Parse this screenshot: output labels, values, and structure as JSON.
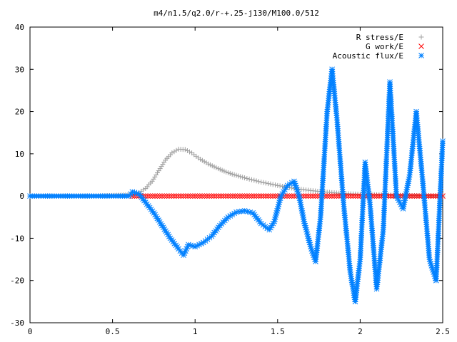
{
  "chart_data": {
    "type": "scatter",
    "title": "m4/n1.5/q2.0/r-+.25-j130/M100.0/512",
    "xlabel": "",
    "ylabel": "",
    "xlim": [
      0,
      2.5
    ],
    "ylim": [
      -30,
      40
    ],
    "x_ticks": [
      0,
      0.5,
      1,
      1.5,
      2,
      2.5
    ],
    "x_tick_labels": [
      "0",
      "0.5",
      "1",
      "1.5",
      "2",
      "2.5"
    ],
    "y_ticks": [
      -30,
      -20,
      -10,
      0,
      10,
      20,
      30,
      40
    ],
    "y_tick_labels": [
      "-30",
      "-20",
      "-10",
      "0",
      "10",
      "20",
      "30",
      "40"
    ],
    "grid": false,
    "legend_position": "top-right",
    "series": [
      {
        "name": "R stress/E",
        "marker": "plus",
        "color": "#a0a0a0",
        "x": [
          0.0,
          0.2,
          0.4,
          0.62,
          0.66,
          0.7,
          0.74,
          0.78,
          0.82,
          0.86,
          0.9,
          0.94,
          0.98,
          1.02,
          1.08,
          1.14,
          1.2,
          1.3,
          1.4,
          1.5,
          1.6,
          1.7,
          1.8,
          1.9,
          2.0,
          2.1,
          2.2,
          2.3,
          2.4,
          2.5
        ],
        "y": [
          0.0,
          0.0,
          0.0,
          0.3,
          0.8,
          1.8,
          3.5,
          6.0,
          8.5,
          10.2,
          11.1,
          11.0,
          10.2,
          9.0,
          7.6,
          6.5,
          5.5,
          4.3,
          3.3,
          2.5,
          1.8,
          1.3,
          0.9,
          0.6,
          0.4,
          0.3,
          0.2,
          0.1,
          0.05,
          0.0
        ]
      },
      {
        "name": "G work/E",
        "marker": "cross",
        "color": "#ff0000",
        "x": [
          0.62,
          0.7,
          0.8,
          0.9,
          1.0,
          1.1,
          1.2,
          1.3,
          1.4,
          1.5,
          1.6,
          1.7,
          1.8,
          1.9,
          2.0,
          2.1,
          2.2,
          2.3,
          2.4,
          2.5
        ],
        "y": [
          0,
          0,
          0,
          0,
          0,
          0,
          0,
          0,
          0,
          0,
          0,
          0,
          0,
          0,
          0,
          0,
          0,
          0,
          0,
          0
        ]
      },
      {
        "name": "Acoustic flux/E",
        "marker": "star",
        "color": "#0080ff",
        "x": [
          0.0,
          0.2,
          0.4,
          0.6,
          0.62,
          0.66,
          0.7,
          0.75,
          0.8,
          0.85,
          0.9,
          0.93,
          0.96,
          1.0,
          1.05,
          1.1,
          1.15,
          1.2,
          1.25,
          1.3,
          1.35,
          1.4,
          1.45,
          1.48,
          1.52,
          1.56,
          1.6,
          1.63,
          1.66,
          1.7,
          1.73,
          1.76,
          1.8,
          1.83,
          1.86,
          1.9,
          1.94,
          1.97,
          2.0,
          2.03,
          2.06,
          2.1,
          2.14,
          2.18,
          2.22,
          2.26,
          2.3,
          2.34,
          2.38,
          2.42,
          2.46,
          2.5
        ],
        "y": [
          0.0,
          0.0,
          0.0,
          0.0,
          1.0,
          0.5,
          -1.5,
          -4.0,
          -7.0,
          -10.0,
          -12.5,
          -14.0,
          -11.5,
          -12.0,
          -11.0,
          -9.5,
          -7.0,
          -5.0,
          -3.8,
          -3.5,
          -4.0,
          -6.5,
          -8.0,
          -6.0,
          0.0,
          2.5,
          3.5,
          0.0,
          -6.0,
          -12.0,
          -15.5,
          -5.0,
          20.0,
          30.0,
          18.0,
          -2.0,
          -18.0,
          -25.0,
          -15.0,
          8.0,
          -2.0,
          -22.0,
          -8.0,
          27.0,
          0.0,
          -3.0,
          5.0,
          20.0,
          3.0,
          -15.0,
          -20.0,
          13.0
        ]
      }
    ]
  }
}
